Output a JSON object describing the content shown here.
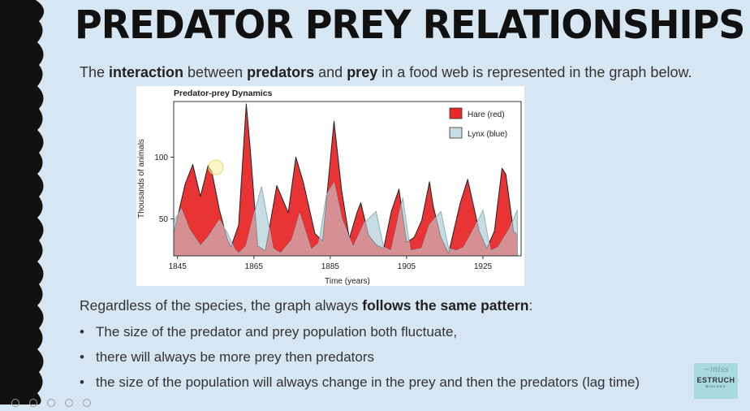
{
  "slide": {
    "title": "PREDATOR PREY RELATIONSHIPS",
    "intro": {
      "t1": "The ",
      "b1": "interaction",
      "t2": " between ",
      "b2": "predators",
      "t3": " and ",
      "b3": "prey",
      "t4": " in a food web is represented in the graph below."
    },
    "pattern": {
      "lead": "Regardless of the species, the graph always ",
      "bold": "follows the same pattern",
      "tail": ":"
    },
    "bullets": [
      "The size of the predator and prey population both fluctuate,",
      "there will always be more prey then predators",
      "the size of the population will always change in the prey and then the predators (lag time)"
    ],
    "bullet_glyph": "•"
  },
  "logo": {
    "signature": "ʀ ᴍɪꜱꜱ",
    "brand": "ESTRUCH",
    "subtitle": "BIOLOGY"
  },
  "colors": {
    "background": "#d6e6f2",
    "hare": "#e8292a",
    "lynx": "#c8dde3",
    "lynx_stroke": "#9ab4bc",
    "border": "#111111"
  },
  "chart_data": {
    "type": "area",
    "title": "Predator-prey Dynamics",
    "xlabel": "Time (years)",
    "ylabel": "Thousands of animals",
    "xlim": [
      1844,
      1935
    ],
    "ylim": [
      20,
      145
    ],
    "xticks": [
      1845,
      1865,
      1885,
      1905,
      1925
    ],
    "yticks": [
      50,
      100
    ],
    "legend_position": "top-right",
    "series": [
      {
        "name": "Hare (red)",
        "color": "#e8292a",
        "x": [
          1844,
          1847,
          1849,
          1851,
          1853,
          1854,
          1856,
          1858,
          1859,
          1861,
          1863,
          1864,
          1866,
          1868,
          1871,
          1874,
          1876,
          1878,
          1881,
          1883,
          1886,
          1888,
          1890,
          1892,
          1893,
          1895,
          1897,
          1899,
          1901,
          1903,
          1905,
          1907,
          1909,
          1911,
          1912,
          1914,
          1916,
          1919,
          1921,
          1924,
          1926,
          1928,
          1930,
          1931,
          1933,
          1934
        ],
        "values": [
          38,
          78,
          94,
          68,
          93,
          88,
          57,
          34,
          27,
          45,
          143,
          108,
          28,
          24,
          77,
          55,
          100,
          79,
          38,
          32,
          129,
          73,
          34,
          55,
          63,
          37,
          29,
          26,
          56,
          74,
          31,
          35,
          49,
          80,
          60,
          35,
          22,
          62,
          82,
          40,
          26,
          40,
          91,
          86,
          40,
          37
        ]
      },
      {
        "name": "Lynx (blue)",
        "color": "#c8dde3",
        "x": [
          1844,
          1846,
          1848,
          1851,
          1853,
          1856,
          1858,
          1860,
          1861,
          1863,
          1865,
          1867,
          1870,
          1872,
          1875,
          1877,
          1880,
          1882,
          1884,
          1886,
          1888,
          1891,
          1894,
          1897,
          1899,
          1901,
          1904,
          1906,
          1909,
          1911,
          1914,
          1916,
          1918,
          1920,
          1923,
          1925,
          1927,
          1929,
          1932,
          1934
        ],
        "values": [
          48,
          58,
          42,
          28,
          35,
          49,
          39,
          25,
          22,
          28,
          53,
          76,
          26,
          22,
          33,
          54,
          25,
          30,
          69,
          79,
          50,
          27,
          47,
          56,
          27,
          24,
          67,
          24,
          26,
          45,
          56,
          26,
          24,
          27,
          44,
          57,
          24,
          27,
          42,
          57
        ]
      }
    ]
  }
}
